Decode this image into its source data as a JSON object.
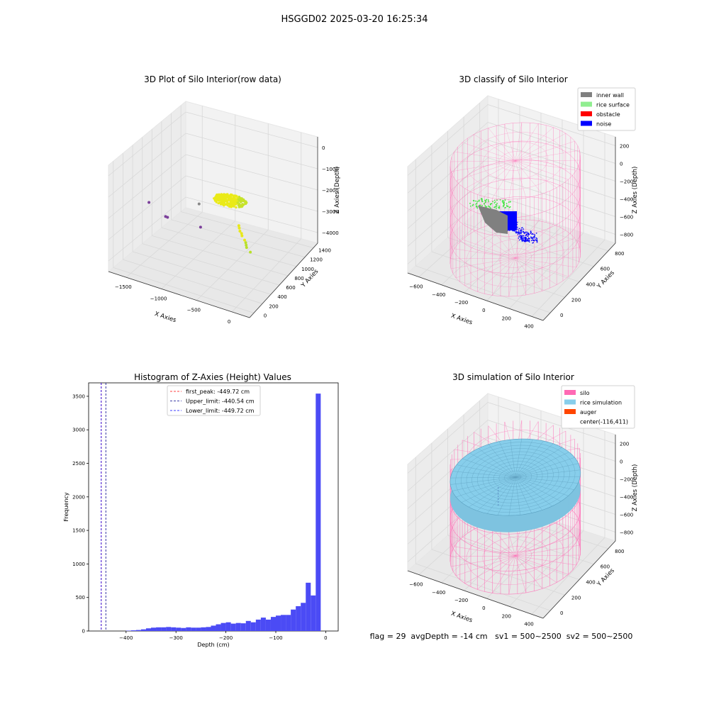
{
  "figure_title": "HSGGD02 2025-03-20 16:25:34",
  "status_text": "flag = 29  avgDepth = -14 cm   sv1 = 500~2500  sv2 = 500~2500",
  "colors": {
    "raw_yellow": "#e8e81a",
    "raw_green": "#b8e02a",
    "raw_purple": "#7b3f9a",
    "raw_gray": "#888888",
    "inner_wall": "#808080",
    "rice_surface": "#90ee90",
    "obstacle": "#ff0000",
    "noise": "#0000ff",
    "silo": "#ff69b4",
    "rice_simulation": "#87ceeb",
    "auger": "#ff4500",
    "histogram_bar": "#4b4bf5"
  },
  "chart_data": [
    {
      "type": "scatter",
      "projection": "3d",
      "title": "3D Plot of Silo Interior(row data)",
      "xlabel": "X Axies",
      "ylabel": "Y Axies",
      "zlabel": "Z Axies (Depth)",
      "x_ticks": [
        "−1500",
        "−1000",
        "−500",
        "0"
      ],
      "y_ticks": [
        "0",
        "200",
        "400",
        "600",
        "800",
        "1000",
        "1200",
        "1400"
      ],
      "z_ticks": [
        "0",
        "−1000",
        "−2000",
        "−3000",
        "−4000"
      ],
      "xlim": [
        -1800,
        200
      ],
      "ylim": [
        -100,
        1500
      ],
      "zlim": [
        -4400,
        200
      ],
      "series": [
        {
          "color": "#e8e81a",
          "points": [
            [
              -500,
              700,
              -2500
            ],
            [
              -450,
              650,
              -2600
            ],
            [
              -400,
              620,
              -2700
            ],
            [
              -350,
              600,
              -2800
            ],
            [
              -480,
              680,
              -2550
            ],
            [
              -420,
              640,
              -2650
            ]
          ]
        },
        {
          "color": "#b8e02a",
          "points": [
            [
              -300,
              560,
              -2900
            ],
            [
              -320,
              580,
              -2850
            ],
            [
              -280,
              540,
              -2950
            ],
            [
              -200,
              500,
              -3000
            ]
          ]
        },
        {
          "color": "#7b3f9a",
          "points": [
            [
              -1500,
              300,
              -1800
            ],
            [
              -1100,
              100,
              -1700
            ],
            [
              -1100,
              60,
              -1600
            ],
            [
              -700,
              200,
              -1900
            ]
          ]
        },
        {
          "color": "#888888",
          "points": [
            [
              -1200,
              900,
              -2600
            ]
          ]
        }
      ]
    },
    {
      "type": "scatter",
      "projection": "3d",
      "title": "3D classify of Silo Interior",
      "xlabel": "X Axies",
      "ylabel": "Y Axies",
      "zlabel": "Z Axies (Depth)",
      "x_ticks": [
        "−600",
        "−400",
        "−200",
        "0",
        "200",
        "400"
      ],
      "y_ticks": [
        "0",
        "200",
        "400",
        "600",
        "800"
      ],
      "z_ticks": [
        "200",
        "0",
        "−200",
        "−400",
        "−600",
        "−800"
      ],
      "xlim": [
        -700,
        450
      ],
      "ylim": [
        -50,
        900
      ],
      "zlim": [
        -900,
        250
      ],
      "legend": {
        "position": "upper right",
        "entries": [
          {
            "label": "inner wall",
            "color": "#808080"
          },
          {
            "label": "rice surface",
            "color": "#90ee90"
          },
          {
            "label": "obstacle",
            "color": "#ff0000"
          },
          {
            "label": "noise",
            "color": "#0000ff"
          }
        ]
      },
      "silo_cylinder": {
        "center": [
          -116,
          411
        ],
        "radius": 450,
        "z_top": 200,
        "z_bottom": -850,
        "color": "#ff69b4"
      }
    },
    {
      "type": "bar",
      "subtype": "histogram",
      "title": "Histogram of Z-Axies (Height) Values",
      "xlabel": "Depth (cm)",
      "ylabel": "Frequency",
      "xlim": [
        -475,
        25
      ],
      "ylim": [
        0,
        3700
      ],
      "x_ticks": [
        -400,
        -300,
        -200,
        -100,
        0
      ],
      "y_ticks": [
        0,
        500,
        1000,
        1500,
        2000,
        2500,
        3000,
        3500
      ],
      "bin_width": 10,
      "bins_start": [
        -400,
        -390,
        -380,
        -370,
        -360,
        -350,
        -340,
        -330,
        -320,
        -310,
        -300,
        -290,
        -280,
        -270,
        -260,
        -250,
        -240,
        -230,
        -220,
        -210,
        -200,
        -190,
        -180,
        -170,
        -160,
        -150,
        -140,
        -130,
        -120,
        -110,
        -100,
        -90,
        -80,
        -70,
        -60,
        -50,
        -40,
        -30,
        -20,
        -10
      ],
      "values": [
        5,
        10,
        15,
        25,
        40,
        50,
        55,
        55,
        60,
        55,
        50,
        45,
        55,
        50,
        50,
        55,
        60,
        80,
        100,
        120,
        130,
        110,
        120,
        115,
        150,
        130,
        170,
        200,
        170,
        210,
        230,
        240,
        240,
        320,
        370,
        420,
        720,
        530,
        3540,
        0
      ],
      "color": "#4b4bf5",
      "vlines": [
        {
          "x": -449.72,
          "color": "#ff0000",
          "label": "first_peak: -449.72 cm"
        },
        {
          "x": -440.54,
          "color": "#00008b",
          "label": "Upper_limit: -440.54 cm"
        },
        {
          "x": -449.72,
          "color": "#0000ff",
          "label": "Lower_limit: -449.72 cm"
        }
      ],
      "legend": {
        "position": "upper center"
      }
    },
    {
      "type": "surface",
      "projection": "3d",
      "title": "3D simulation of Silo Interior",
      "xlabel": "X Axies",
      "ylabel": "Y Axies",
      "zlabel": "Z Axies (Depth)",
      "x_ticks": [
        "−600",
        "−400",
        "−200",
        "0",
        "200",
        "400"
      ],
      "y_ticks": [
        "0",
        "200",
        "400",
        "600",
        "800"
      ],
      "z_ticks": [
        "200",
        "0",
        "−200",
        "−400",
        "−600",
        "−800"
      ],
      "xlim": [
        -700,
        450
      ],
      "ylim": [
        -50,
        900
      ],
      "zlim": [
        -900,
        250
      ],
      "legend": {
        "position": "upper right",
        "entries": [
          {
            "label": "silo",
            "color": "#ff69b4"
          },
          {
            "label": "rice simulation",
            "color": "#87ceeb"
          },
          {
            "label": "auger",
            "color": "#ff4500"
          },
          {
            "label": "center(-116,411)",
            "color": ""
          }
        ]
      },
      "silo_cylinder": {
        "center": [
          -116,
          411
        ],
        "radius": 450,
        "z_top": 200,
        "z_bottom": -850,
        "color": "#ff69b4"
      },
      "rice_surface_depth": -14
    }
  ]
}
